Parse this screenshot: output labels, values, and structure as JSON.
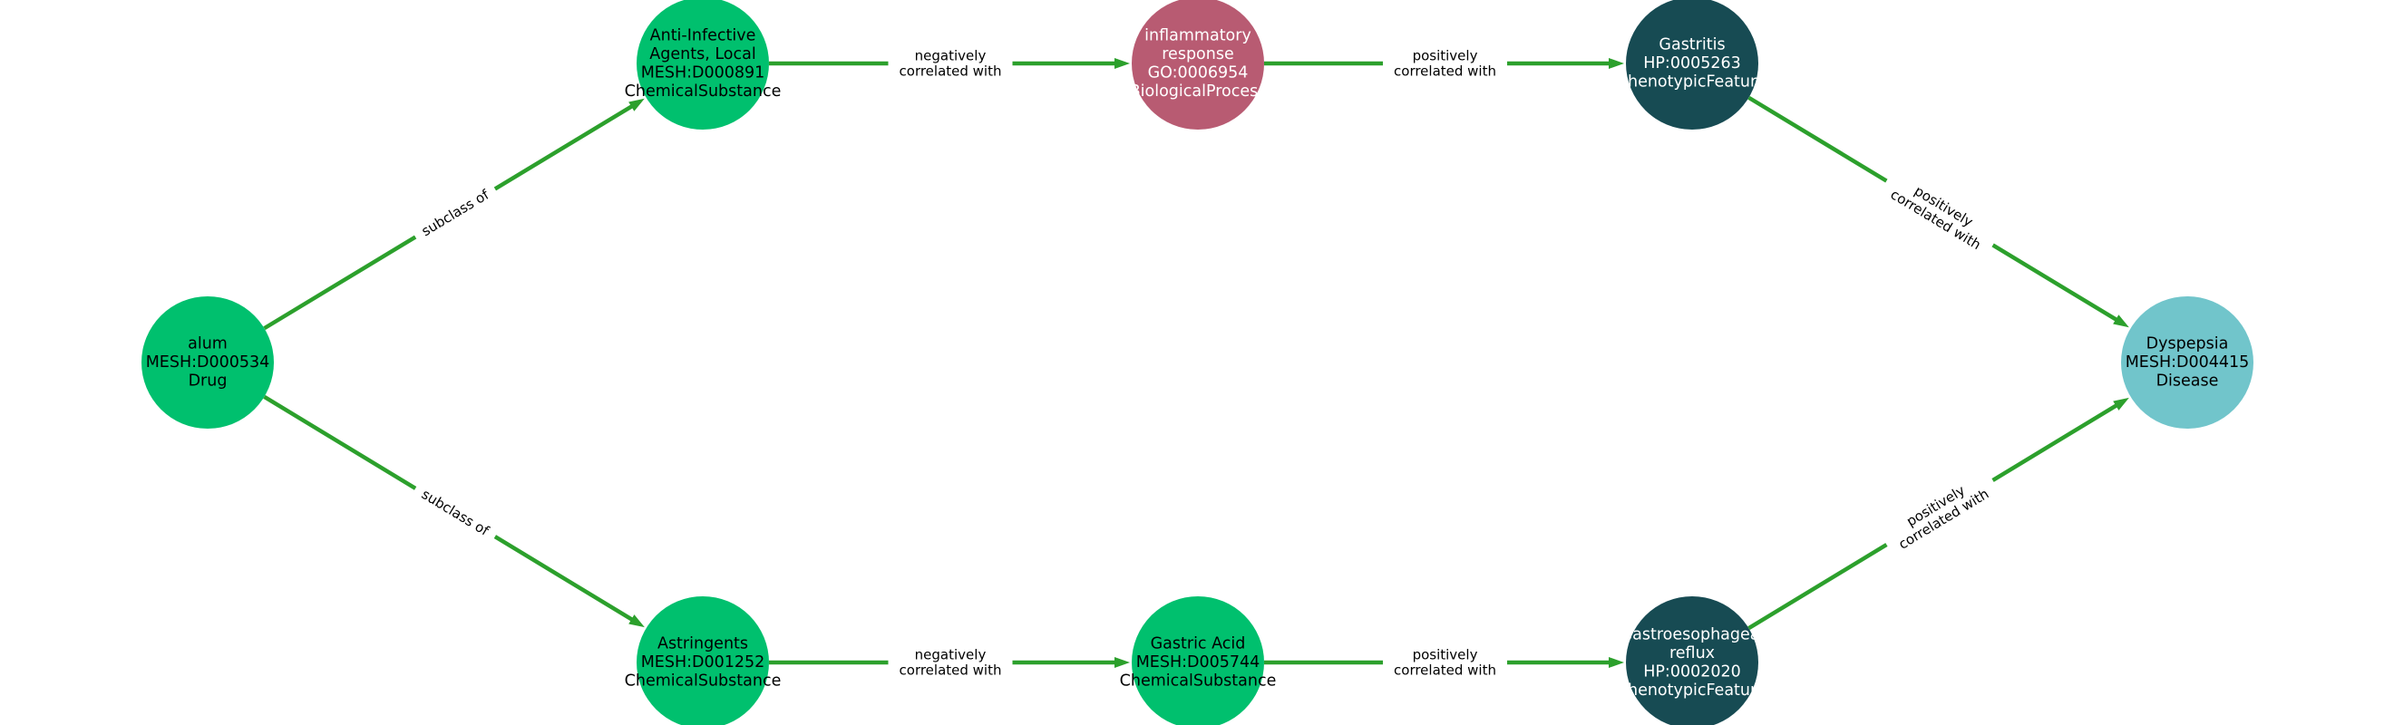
{
  "diagram": {
    "nodes": [
      {
        "id": "alum",
        "lines": [
          "alum",
          "MESH:D000534",
          "Drug"
        ],
        "color": "#00c06e",
        "text_color": "#000000"
      },
      {
        "id": "anti_infective",
        "lines": [
          "Anti-Infective",
          "Agents, Local",
          "MESH:D000891",
          "ChemicalSubstance"
        ],
        "color": "#00c06e",
        "text_color": "#000000"
      },
      {
        "id": "inflammatory",
        "lines": [
          "inflammatory",
          "response",
          "GO:0006954",
          "BiologicalProcess"
        ],
        "color": "#b85b72",
        "text_color": "#ffffff"
      },
      {
        "id": "gastritis",
        "lines": [
          "Gastritis",
          "HP:0005263",
          "PhenotypicFeature"
        ],
        "color": "#174b53",
        "text_color": "#ffffff"
      },
      {
        "id": "dyspepsia",
        "lines": [
          "Dyspepsia",
          "MESH:D004415",
          "Disease"
        ],
        "color": "#71c5cb",
        "text_color": "#000000"
      },
      {
        "id": "astringents",
        "lines": [
          "Astringents",
          "MESH:D001252",
          "ChemicalSubstance"
        ],
        "color": "#00c06e",
        "text_color": "#000000"
      },
      {
        "id": "gastric_acid",
        "lines": [
          "Gastric Acid",
          "MESH:D005744",
          "ChemicalSubstance"
        ],
        "color": "#00c06e",
        "text_color": "#000000"
      },
      {
        "id": "gerd",
        "lines": [
          "Gastroesophageal",
          "reflux",
          "HP:0002020",
          "PhenotypicFeature"
        ],
        "color": "#174b53",
        "text_color": "#ffffff"
      }
    ],
    "edges": [
      {
        "source": "alum",
        "target": "anti_infective",
        "lines": [
          "subclass of"
        ]
      },
      {
        "source": "anti_infective",
        "target": "inflammatory",
        "lines": [
          "negatively",
          "correlated with"
        ]
      },
      {
        "source": "inflammatory",
        "target": "gastritis",
        "lines": [
          "positively",
          "correlated with"
        ]
      },
      {
        "source": "gastritis",
        "target": "dyspepsia",
        "lines": [
          "positively",
          "correlated with"
        ]
      },
      {
        "source": "alum",
        "target": "astringents",
        "lines": [
          "subclass of"
        ]
      },
      {
        "source": "astringents",
        "target": "gastric_acid",
        "lines": [
          "negatively",
          "correlated with"
        ]
      },
      {
        "source": "gastric_acid",
        "target": "gerd",
        "lines": [
          "positively",
          "correlated with"
        ]
      },
      {
        "source": "gerd",
        "target": "dyspepsia",
        "lines": [
          "positively",
          "correlated with"
        ]
      }
    ],
    "edge_color": "#2ca02c"
  }
}
